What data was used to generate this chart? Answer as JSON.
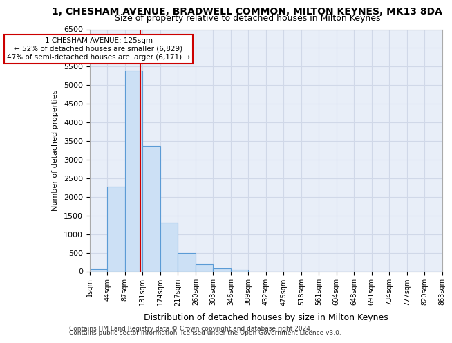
{
  "title_line1": "1, CHESHAM AVENUE, BRADWELL COMMON, MILTON KEYNES, MK13 8DA",
  "title_line2": "Size of property relative to detached houses in Milton Keynes",
  "xlabel": "Distribution of detached houses by size in Milton Keynes",
  "ylabel": "Number of detached properties",
  "bin_labels": [
    "1sqm",
    "44sqm",
    "87sqm",
    "131sqm",
    "174sqm",
    "217sqm",
    "260sqm",
    "303sqm",
    "346sqm",
    "389sqm",
    "432sqm",
    "475sqm",
    "518sqm",
    "561sqm",
    "604sqm",
    "648sqm",
    "691sqm",
    "734sqm",
    "777sqm",
    "820sqm",
    "863sqm"
  ],
  "bar_values": [
    70,
    2280,
    5400,
    3380,
    1310,
    490,
    195,
    90,
    55,
    0,
    0,
    0,
    0,
    0,
    0,
    0,
    0,
    0,
    0,
    0
  ],
  "bar_color": "#cce0f5",
  "bar_edge_color": "#5b9bd5",
  "property_line_label": "1 CHESHAM AVENUE: 125sqm",
  "annotation_line2": "← 52% of detached houses are smaller (6,829)",
  "annotation_line3": "47% of semi-detached houses are larger (6,171) →",
  "property_line_color": "#cc0000",
  "annotation_box_edge_color": "#cc0000",
  "ylim": [
    0,
    6500
  ],
  "yticks": [
    0,
    500,
    1000,
    1500,
    2000,
    2500,
    3000,
    3500,
    4000,
    4500,
    5000,
    5500,
    6000,
    6500
  ],
  "grid_color": "#d0d8e8",
  "background_color": "#e8eef8",
  "footer_line1": "Contains HM Land Registry data © Crown copyright and database right 2024.",
  "footer_line2": "Contains public sector information licensed under the Open Government Licence v3.0."
}
